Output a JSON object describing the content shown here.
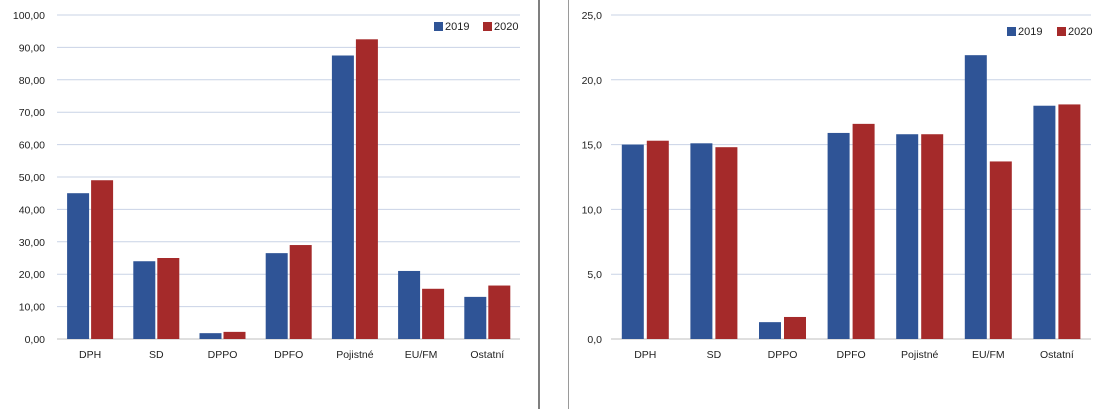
{
  "colors": {
    "series_2019": "#2f5496",
    "series_2020": "#a52a2a",
    "grid": "#c9d3e6",
    "axis": "#bfbfbf"
  },
  "chart_data": [
    {
      "type": "bar",
      "categories": [
        "DPH",
        "SD",
        "DPPO",
        "DPFO",
        "Pojistné",
        "EU/FM",
        "Ostatní"
      ],
      "series": [
        {
          "name": "2019",
          "values": [
            45.0,
            24.0,
            1.8,
            26.5,
            87.5,
            21.0,
            13.0
          ]
        },
        {
          "name": "2020",
          "values": [
            49.0,
            25.0,
            2.2,
            29.0,
            92.5,
            15.5,
            16.5
          ]
        }
      ],
      "ylim": [
        0,
        100
      ],
      "yticks": [
        "0,00",
        "10,00",
        "20,00",
        "30,00",
        "40,00",
        "50,00",
        "60,00",
        "70,00",
        "80,00",
        "90,00",
        "100,00"
      ],
      "grid": true,
      "legend": "top-right",
      "title": "",
      "xlabel": "",
      "ylabel": ""
    },
    {
      "type": "bar",
      "categories": [
        "DPH",
        "SD",
        "DPPO",
        "DPFO",
        "Pojistné",
        "EU/FM",
        "Ostatní"
      ],
      "series": [
        {
          "name": "2019",
          "values": [
            15.0,
            15.1,
            1.3,
            15.9,
            15.8,
            21.9,
            18.0
          ]
        },
        {
          "name": "2020",
          "values": [
            15.3,
            14.8,
            1.7,
            16.6,
            15.8,
            13.7,
            18.1
          ]
        }
      ],
      "ylim": [
        0,
        25
      ],
      "yticks": [
        "0,0",
        "5,0",
        "10,0",
        "15,0",
        "20,0",
        "25,0"
      ],
      "grid": true,
      "legend": "top-right",
      "title": "",
      "xlabel": "",
      "ylabel": ""
    }
  ]
}
